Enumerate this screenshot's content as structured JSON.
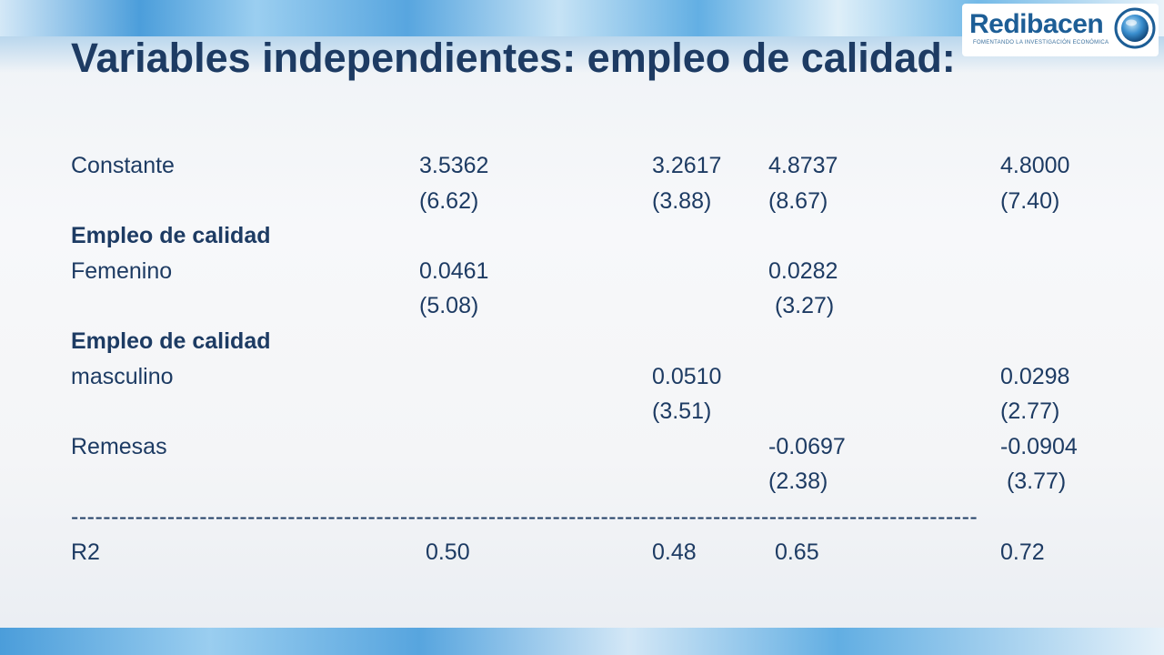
{
  "logo": {
    "name": "Redibacen",
    "tagline": "FOMENTANDO LA INVESTIGACIÓN ECONÓMICA"
  },
  "title": "Variables independientes: empleo de calidad:",
  "table": {
    "rows": [
      {
        "label": "Constante",
        "c1": "3.5362",
        "c2": "3.2617",
        "c3": "4.8737",
        "c4": "4.8000"
      },
      {
        "label": "",
        "c1": "(6.62)",
        "c2": "(3.88)",
        "c3": "(8.67)",
        "c4": "(7.40)"
      },
      {
        "label": "Empleo de calidad",
        "c1": "",
        "c2": "",
        "c3": "",
        "c4": ""
      },
      {
        "label": "Femenino",
        "c1": "0.0461",
        "c2": "",
        "c3": "0.0282",
        "c4": ""
      },
      {
        "label": "",
        "c1": "(5.08)",
        "c2": "",
        "c3": " (3.27)",
        "c4": ""
      },
      {
        "label": "Empleo de calidad",
        "c1": "",
        "c2": "",
        "c3": "",
        "c4": ""
      },
      {
        "label": "masculino",
        "c1": "",
        "c2": "0.0510",
        "c3": "",
        "c4": "0.0298"
      },
      {
        "label": "",
        "c1": "",
        "c2": "(3.51)",
        "c3": "",
        "c4": "(2.77)"
      },
      {
        "label": "Remesas",
        "c1": "",
        "c2": "",
        "c3": "-0.0697",
        "c4": "-0.0904"
      },
      {
        "label": "",
        "c1": "",
        "c2": "",
        "c3": "(2.38)",
        "c4": " (3.77)"
      }
    ],
    "divider": "-----------------------------------------------------------------------------------------------------------------",
    "r2": {
      "label": "R2",
      "c1": " 0.50",
      "c2": "0.48",
      "c3": " 0.65",
      "c4": "0.72"
    }
  }
}
